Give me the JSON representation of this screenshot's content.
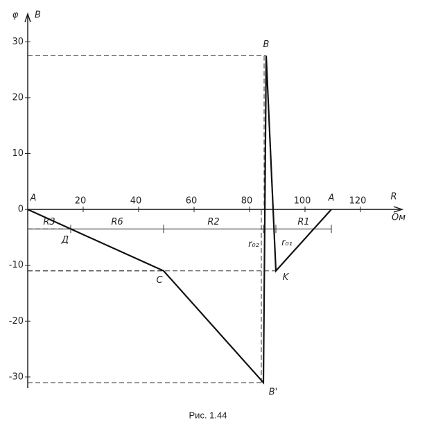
{
  "chart_data": {
    "type": "line",
    "title": "Рис. 1.44",
    "y_label": "φ",
    "y_unit": "B",
    "x_label": "R",
    "x_unit": "Ом",
    "x": [
      0,
      15.5,
      49,
      85,
      86,
      89.5,
      109.5
    ],
    "series": [
      {
        "name": null,
        "color": "#111111",
        "values": [
          0,
          -3.5,
          -11,
          -31,
          27.5,
          -11,
          0
        ]
      }
    ],
    "point_labels": [
      "A",
      "Д",
      "C",
      "B'",
      "B",
      "K",
      "A"
    ],
    "segment_labels": [
      "R3",
      "R6",
      "R2",
      "R1",
      "r₀₂",
      "r₀₁"
    ],
    "xlim": [
      0,
      135
    ],
    "xticks": [
      20,
      40,
      60,
      80,
      100,
      120
    ],
    "ylim": [
      -32,
      35
    ],
    "yticks": [
      -30,
      -20,
      -10,
      0,
      10,
      20,
      30
    ]
  }
}
